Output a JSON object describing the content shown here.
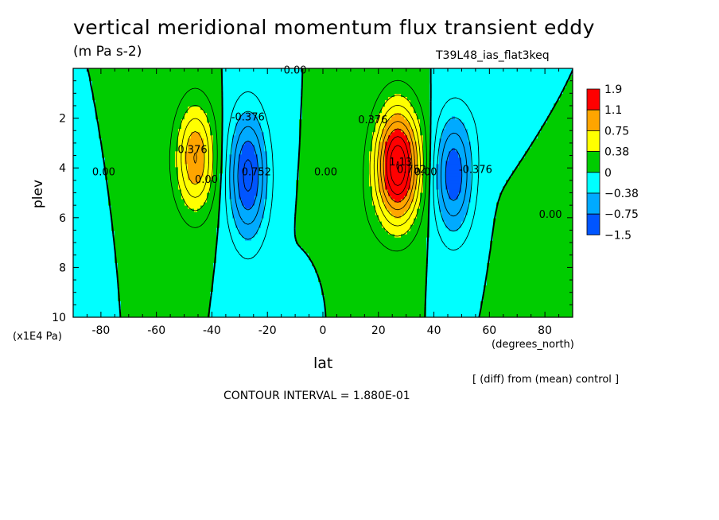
{
  "chart_data": {
    "type": "heatmap",
    "title": "vertical meridional momentum flux transient eddy",
    "units": "(m Pa s-2)",
    "run_label": "T39L48_ias_flat3keq",
    "xlabel": "lat",
    "x_unit": "(degrees_north)",
    "ylabel": "plev",
    "y_unit": "(x1E4 Pa)",
    "xlim": [
      -90,
      90
    ],
    "ylim": [
      10,
      0
    ],
    "x_ticks": [
      -80,
      -60,
      -40,
      -20,
      0,
      20,
      40,
      60,
      80
    ],
    "y_ticks": [
      2,
      4,
      6,
      8,
      10
    ],
    "colorbar": {
      "levels": [
        "1.9",
        "1.1",
        "0.75",
        "0.38",
        "0",
        "−0.38",
        "−0.75",
        "−1.5"
      ],
      "colors": [
        "#ff0000",
        "#ffa500",
        "#ffff00",
        "#00cc00",
        "#00ffff",
        "#00aaff",
        "#0055ff"
      ]
    },
    "contour_labels": [
      {
        "text": "0.00",
        "lat": -10,
        "p": 0.2
      },
      {
        "text": "0.376",
        "lat": -47,
        "p": 3.4
      },
      {
        "text": "0.00",
        "lat": -42,
        "p": 4.6
      },
      {
        "text": "-0.376",
        "lat": -27,
        "p": 2.1
      },
      {
        "text": "0.752",
        "lat": -24,
        "p": 4.3
      },
      {
        "text": "0.00",
        "lat": -79,
        "p": 4.3
      },
      {
        "text": "0.00",
        "lat": 1,
        "p": 4.3
      },
      {
        "text": "0.376",
        "lat": 18,
        "p": 2.2
      },
      {
        "text": "1.13",
        "lat": 28,
        "p": 3.9
      },
      {
        "text": "0.752",
        "lat": 32,
        "p": 4.2
      },
      {
        "text": "0.00",
        "lat": 37,
        "p": 4.3
      },
      {
        "text": "-0.376",
        "lat": 55,
        "p": 4.2
      },
      {
        "text": "0.00",
        "lat": 82,
        "p": 6.0
      }
    ],
    "contour_interval": "CONTOUR INTERVAL = 1.880E-01",
    "diff_note": "[ (diff) from (mean) control ]"
  }
}
